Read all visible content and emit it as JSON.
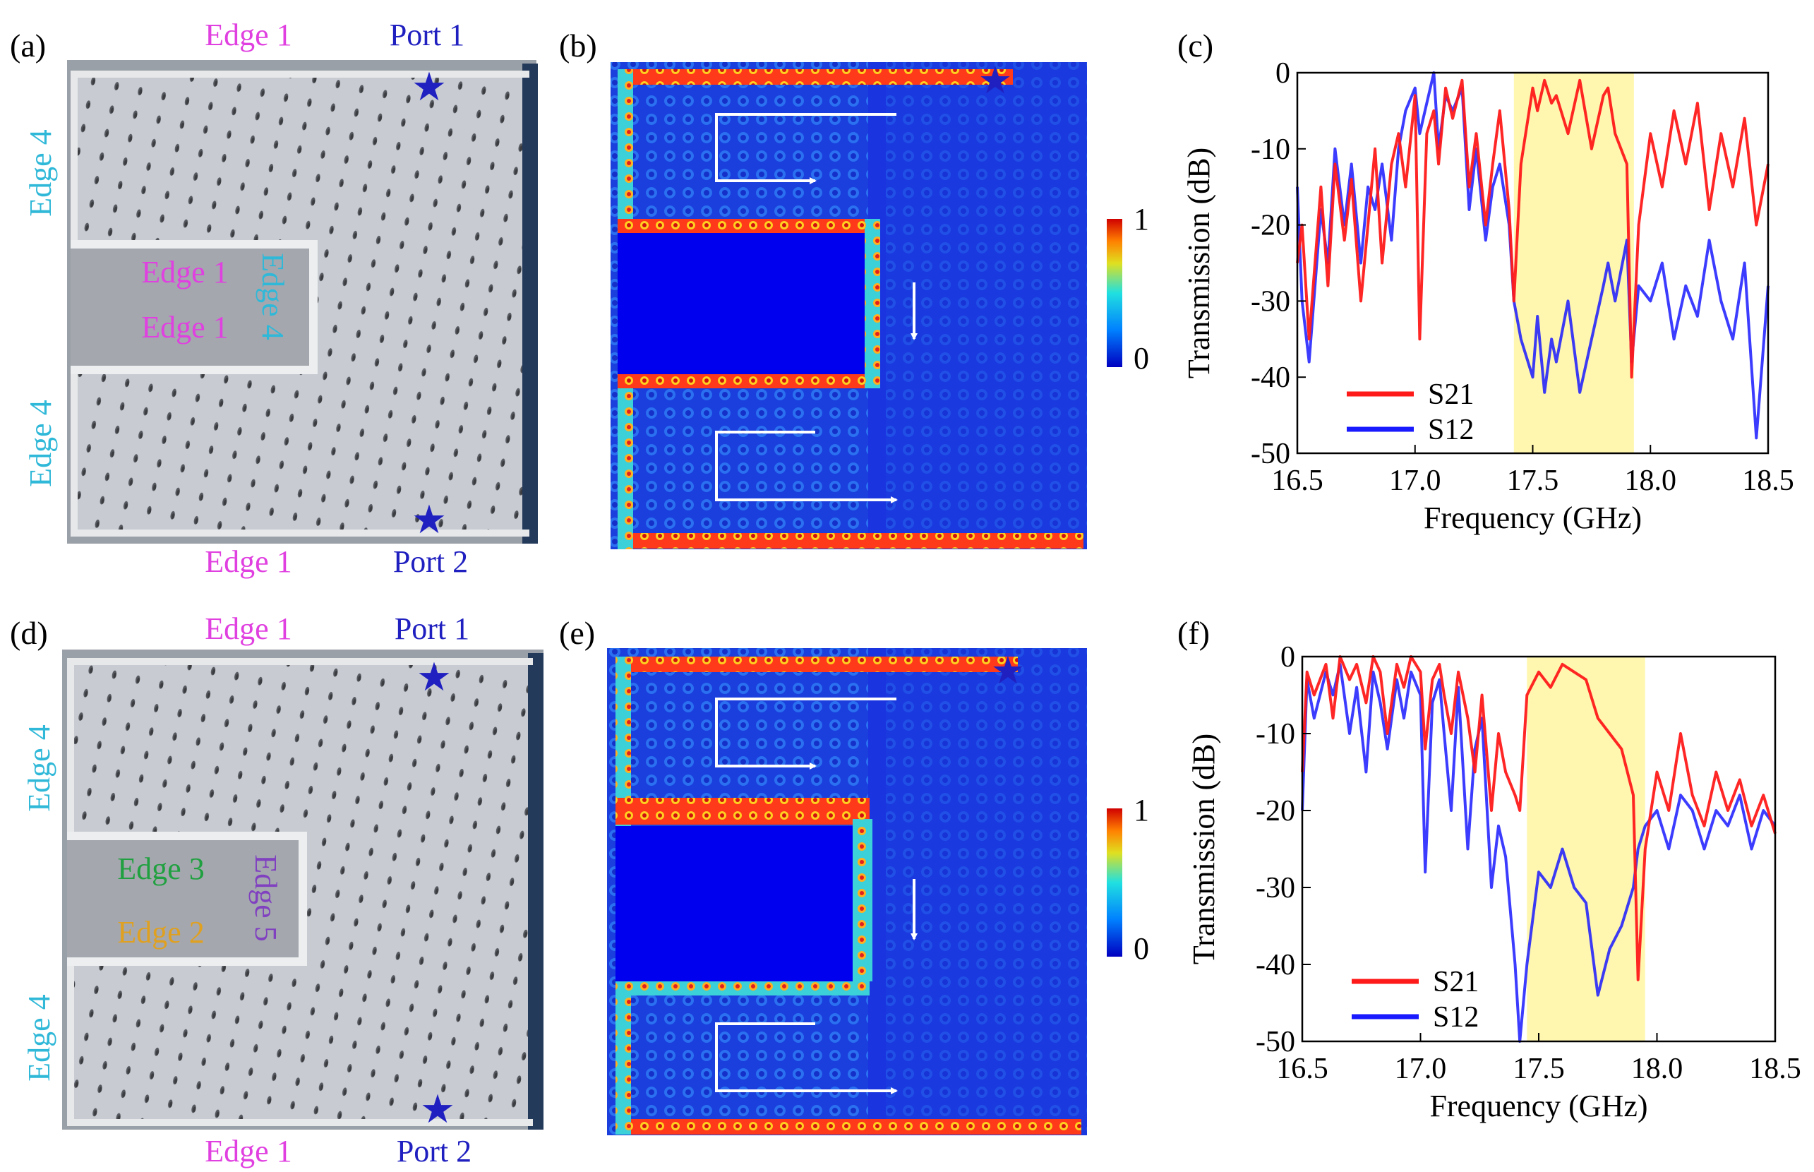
{
  "figure": {
    "panel_labels": [
      "(a)",
      "(b)",
      "(c)",
      "(d)",
      "(e)",
      "(f)"
    ],
    "photo_top": {
      "edge_labels": [
        "Edge 1",
        "Edge 1",
        "Edge 1",
        "Edge 1"
      ],
      "edge4_labels": [
        "Edge 4",
        "Edge 4",
        "Edge 4"
      ],
      "ports": [
        "Port 1",
        "Port 2"
      ]
    },
    "photo_bottom": {
      "edge_top": "Edge 1",
      "edge_bottom": "Edge 1",
      "edge4_labels": [
        "Edge 4",
        "Edge 4"
      ],
      "edge3": "Edge 3",
      "edge2": "Edge 2",
      "edge5": "Edge 5",
      "ports": [
        "Port 1",
        "Port 2"
      ]
    },
    "colorbar": {
      "max_label": "1",
      "min_label": "0"
    },
    "colors": {
      "edge1": "#e040e0",
      "edge4": "#30b8d8",
      "edge3": "#20a040",
      "edge2": "#e0a020",
      "edge5": "#8040c0",
      "port": "#2020c0",
      "s21": "#ff1a1a",
      "s12": "#1a1aff",
      "band": "#fff7b0"
    }
  },
  "chart_data": [
    {
      "panel": "(c)",
      "type": "line",
      "xlabel": "Frequency (GHz)",
      "ylabel": "Transmission (dB)",
      "xlim": [
        16.5,
        18.5
      ],
      "ylim": [
        -50,
        0
      ],
      "xticks": [
        "16.5",
        "17.0",
        "17.5",
        "18.0",
        "18.5"
      ],
      "yticks": [
        "0",
        "-10",
        "-20",
        "-30",
        "-40",
        "-50"
      ],
      "highlight_band": [
        17.42,
        17.93
      ],
      "legend": [
        "S21",
        "S12"
      ],
      "series": [
        {
          "name": "S21",
          "x": [
            16.5,
            16.52,
            16.55,
            16.6,
            16.63,
            16.66,
            16.7,
            16.73,
            16.77,
            16.8,
            16.83,
            16.86,
            16.9,
            16.93,
            16.96,
            17.0,
            17.02,
            17.05,
            17.08,
            17.1,
            17.13,
            17.16,
            17.2,
            17.23,
            17.26,
            17.3,
            17.33,
            17.36,
            17.4,
            17.42,
            17.45,
            17.5,
            17.52,
            17.55,
            17.58,
            17.6,
            17.65,
            17.7,
            17.75,
            17.8,
            17.82,
            17.85,
            17.9,
            17.92,
            17.95,
            18.0,
            18.05,
            18.1,
            18.15,
            18.2,
            18.25,
            18.3,
            18.35,
            18.4,
            18.45,
            18.5
          ],
          "y": [
            -25,
            -20,
            -35,
            -15,
            -28,
            -12,
            -22,
            -14,
            -30,
            -20,
            -10,
            -25,
            -12,
            -8,
            -15,
            -3,
            -35,
            -8,
            -5,
            -12,
            -2,
            -6,
            -1,
            -15,
            -8,
            -20,
            -12,
            -5,
            -18,
            -30,
            -12,
            -2,
            -5,
            -1,
            -4,
            -3,
            -8,
            -1,
            -10,
            -3,
            -2,
            -8,
            -12,
            -40,
            -20,
            -8,
            -15,
            -5,
            -12,
            -4,
            -18,
            -8,
            -15,
            -6,
            -20,
            -12
          ]
        },
        {
          "name": "S12",
          "x": [
            16.5,
            16.52,
            16.55,
            16.6,
            16.63,
            16.66,
            16.7,
            16.73,
            16.77,
            16.8,
            16.83,
            16.86,
            16.9,
            16.93,
            16.96,
            17.0,
            17.02,
            17.05,
            17.08,
            17.1,
            17.13,
            17.16,
            17.2,
            17.23,
            17.26,
            17.3,
            17.33,
            17.36,
            17.4,
            17.42,
            17.45,
            17.5,
            17.52,
            17.55,
            17.58,
            17.6,
            17.65,
            17.7,
            17.75,
            17.8,
            17.82,
            17.85,
            17.9,
            17.92,
            17.95,
            18.0,
            18.05,
            18.1,
            18.15,
            18.2,
            18.25,
            18.3,
            18.35,
            18.4,
            18.45,
            18.5
          ],
          "y": [
            -15,
            -30,
            -38,
            -18,
            -25,
            -10,
            -20,
            -12,
            -25,
            -15,
            -18,
            -12,
            -22,
            -10,
            -5,
            -2,
            -8,
            -4,
            0,
            -10,
            -3,
            -5,
            -2,
            -18,
            -10,
            -22,
            -15,
            -12,
            -20,
            -30,
            -35,
            -40,
            -32,
            -42,
            -35,
            -38,
            -30,
            -42,
            -35,
            -28,
            -25,
            -30,
            -22,
            -38,
            -28,
            -30,
            -25,
            -35,
            -28,
            -32,
            -22,
            -30,
            -35,
            -25,
            -48,
            -28
          ]
        }
      ]
    },
    {
      "panel": "(f)",
      "type": "line",
      "xlabel": "Frequency (GHz)",
      "ylabel": "Transmission (dB)",
      "xlim": [
        16.5,
        18.5
      ],
      "ylim": [
        -50,
        0
      ],
      "xticks": [
        "16.5",
        "17.0",
        "17.5",
        "18.0",
        "18.5"
      ],
      "yticks": [
        "0",
        "-10",
        "-20",
        "-30",
        "-40",
        "-50"
      ],
      "highlight_band": [
        17.45,
        17.95
      ],
      "legend": [
        "S21",
        "S12"
      ],
      "series": [
        {
          "name": "S21",
          "x": [
            16.5,
            16.52,
            16.55,
            16.6,
            16.63,
            16.66,
            16.7,
            16.73,
            16.77,
            16.8,
            16.83,
            16.86,
            16.9,
            16.93,
            16.96,
            17.0,
            17.02,
            17.05,
            17.08,
            17.1,
            17.13,
            17.16,
            17.2,
            17.23,
            17.26,
            17.3,
            17.33,
            17.36,
            17.4,
            17.42,
            17.45,
            17.5,
            17.55,
            17.6,
            17.65,
            17.7,
            17.75,
            17.8,
            17.85,
            17.9,
            17.92,
            17.95,
            18.0,
            18.05,
            18.1,
            18.15,
            18.2,
            18.25,
            18.3,
            18.35,
            18.4,
            18.45,
            18.5
          ],
          "y": [
            -15,
            -2,
            -5,
            -1,
            -8,
            0,
            -3,
            -1,
            -6,
            0,
            -2,
            -10,
            -1,
            -4,
            0,
            -2,
            -12,
            -3,
            -1,
            -5,
            -10,
            -2,
            -8,
            -15,
            -5,
            -20,
            -10,
            -15,
            -18,
            -20,
            -5,
            -2,
            -4,
            -1,
            -2,
            -3,
            -8,
            -10,
            -12,
            -18,
            -42,
            -25,
            -15,
            -20,
            -10,
            -18,
            -22,
            -15,
            -20,
            -16,
            -22,
            -18,
            -23
          ]
        },
        {
          "name": "S12",
          "x": [
            16.5,
            16.52,
            16.55,
            16.6,
            16.63,
            16.66,
            16.7,
            16.73,
            16.77,
            16.8,
            16.83,
            16.86,
            16.9,
            16.93,
            16.96,
            17.0,
            17.02,
            17.05,
            17.08,
            17.1,
            17.13,
            17.16,
            17.2,
            17.23,
            17.26,
            17.3,
            17.33,
            17.36,
            17.4,
            17.42,
            17.45,
            17.5,
            17.55,
            17.6,
            17.65,
            17.7,
            17.75,
            17.8,
            17.85,
            17.9,
            17.92,
            17.95,
            18.0,
            18.05,
            18.1,
            18.15,
            18.2,
            18.25,
            18.3,
            18.35,
            18.4,
            18.45,
            18.5
          ],
          "y": [
            -20,
            -3,
            -8,
            -2,
            -5,
            -1,
            -10,
            -4,
            -15,
            -2,
            -6,
            -12,
            -3,
            -8,
            -2,
            -5,
            -28,
            -6,
            -3,
            -10,
            -20,
            -4,
            -25,
            -12,
            -8,
            -30,
            -22,
            -26,
            -40,
            -50,
            -40,
            -28,
            -30,
            -25,
            -30,
            -32,
            -44,
            -38,
            -35,
            -30,
            -25,
            -22,
            -20,
            -25,
            -18,
            -20,
            -25,
            -20,
            -22,
            -18,
            -25,
            -20,
            -22
          ]
        }
      ]
    }
  ]
}
